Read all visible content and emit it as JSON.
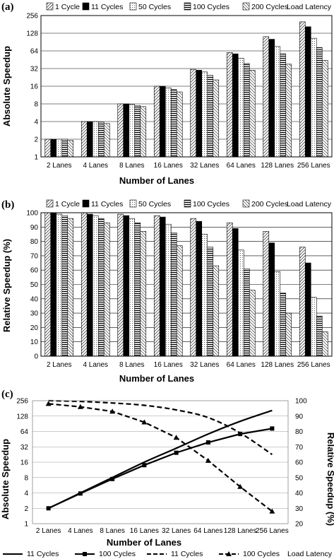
{
  "chart_data": [
    {
      "panel_label": "(a)",
      "type": "bar",
      "xlabel": "Number of Lanes",
      "ylabel": "Absolute Speedup",
      "y_scale": "log2",
      "ylim": [
        1,
        256
      ],
      "yticks": [
        "1",
        "2",
        "4",
        "8",
        "16",
        "32",
        "64",
        "128",
        "256"
      ],
      "categories": [
        "2 Lanes",
        "4 Lanes",
        "8 Lanes",
        "16 Lanes",
        "32 Lanes",
        "64 Lanes",
        "128 Lanes",
        "256 Lanes"
      ],
      "legend_suffix": "Load Latency",
      "legend_position": "top",
      "series": [
        {
          "name": "1 Cycle",
          "pattern": "diag",
          "values": [
            2,
            4,
            8,
            16,
            31,
            60,
            112,
            200
          ]
        },
        {
          "name": "11 Cycles",
          "pattern": "solid",
          "values": [
            2,
            4,
            8,
            16,
            30,
            57,
            101,
            165
          ]
        },
        {
          "name": "50 Cycles",
          "pattern": "dots",
          "values": [
            2,
            4,
            7.8,
            15,
            28,
            48,
            76,
            105
          ]
        },
        {
          "name": "100 Cycles",
          "pattern": "hlines",
          "values": [
            2,
            3.9,
            7.5,
            14,
            24.5,
            39,
            57,
            73
          ]
        },
        {
          "name": "200 Cycles",
          "pattern": "backdiag",
          "values": [
            1.9,
            3.7,
            7.2,
            12.8,
            20.5,
            30,
            38,
            44
          ]
        }
      ]
    },
    {
      "panel_label": "(b)",
      "type": "bar",
      "xlabel": "Number of Lanes",
      "ylabel": "Relative Speedup (%)",
      "ylim": [
        0,
        100
      ],
      "yticks": [
        "0",
        "10",
        "20",
        "30",
        "40",
        "50",
        "60",
        "70",
        "80",
        "90",
        "100"
      ],
      "categories": [
        "2 Lanes",
        "4 Lanes",
        "8 Lanes",
        "16 Lanes",
        "32 Lanes",
        "64 Lanes",
        "128 Lanes",
        "256 Lanes"
      ],
      "legend_suffix": "Load Latency",
      "legend_position": "top",
      "series": [
        {
          "name": "1 Cycle",
          "pattern": "diag",
          "values": [
            100,
            100,
            99,
            98,
            96,
            93,
            87,
            76
          ]
        },
        {
          "name": "11 Cycles",
          "pattern": "solid",
          "values": [
            100,
            99,
            98,
            97,
            94,
            89,
            79,
            65
          ]
        },
        {
          "name": "50 Cycles",
          "pattern": "dots",
          "values": [
            99,
            98,
            96,
            92,
            85,
            74,
            59,
            41
          ]
        },
        {
          "name": "100 Cycles",
          "pattern": "hlines",
          "values": [
            98,
            96,
            93,
            86,
            76,
            61,
            44,
            28
          ]
        },
        {
          "name": "200 Cycles",
          "pattern": "backdiag",
          "values": [
            96,
            93,
            87,
            77,
            63,
            46,
            30,
            17
          ]
        }
      ]
    },
    {
      "panel_label": "(c)",
      "type": "line",
      "xlabel": "Number of Lanes",
      "ylabel_left": "Absolute Speedup",
      "ylabel_right": "Relative Speedup (%)",
      "y_left_scale": "log2",
      "y_left_lim": [
        1,
        256
      ],
      "y_left_ticks": [
        "1",
        "2",
        "4",
        "8",
        "16",
        "32",
        "64",
        "128",
        "256"
      ],
      "y_right_lim": [
        20,
        100
      ],
      "y_right_ticks": [
        "20",
        "30",
        "40",
        "50",
        "60",
        "70",
        "80",
        "90",
        "100"
      ],
      "categories": [
        "2 Lanes",
        "4 Lanes",
        "8 Lanes",
        "16 Lanes",
        "32 Lanes",
        "64 Lanes",
        "128 Lanes",
        "256 Lanes"
      ],
      "legend_position": "bottom",
      "series": [
        {
          "name": "11 Cycles",
          "axis": "left",
          "style": "solid",
          "marker": "none",
          "values": [
            2,
            4,
            8,
            16,
            30,
            57,
            101,
            165
          ]
        },
        {
          "name": "100 Cycles",
          "axis": "left",
          "style": "solid",
          "marker": "square",
          "values": [
            2,
            3.9,
            7.5,
            14,
            24.5,
            39,
            57,
            73
          ]
        },
        {
          "name": "11 Cycles",
          "axis": "right",
          "style": "dashed",
          "marker": "none",
          "values": [
            100,
            99.5,
            98.5,
            97,
            94,
            89,
            79,
            65
          ]
        },
        {
          "name": "100 Cycles",
          "axis": "right",
          "style": "dashed",
          "marker": "triangle",
          "values": [
            98,
            96,
            93,
            86,
            76,
            61,
            44,
            28
          ]
        }
      ],
      "legend_suffix": "Load Latency"
    }
  ]
}
